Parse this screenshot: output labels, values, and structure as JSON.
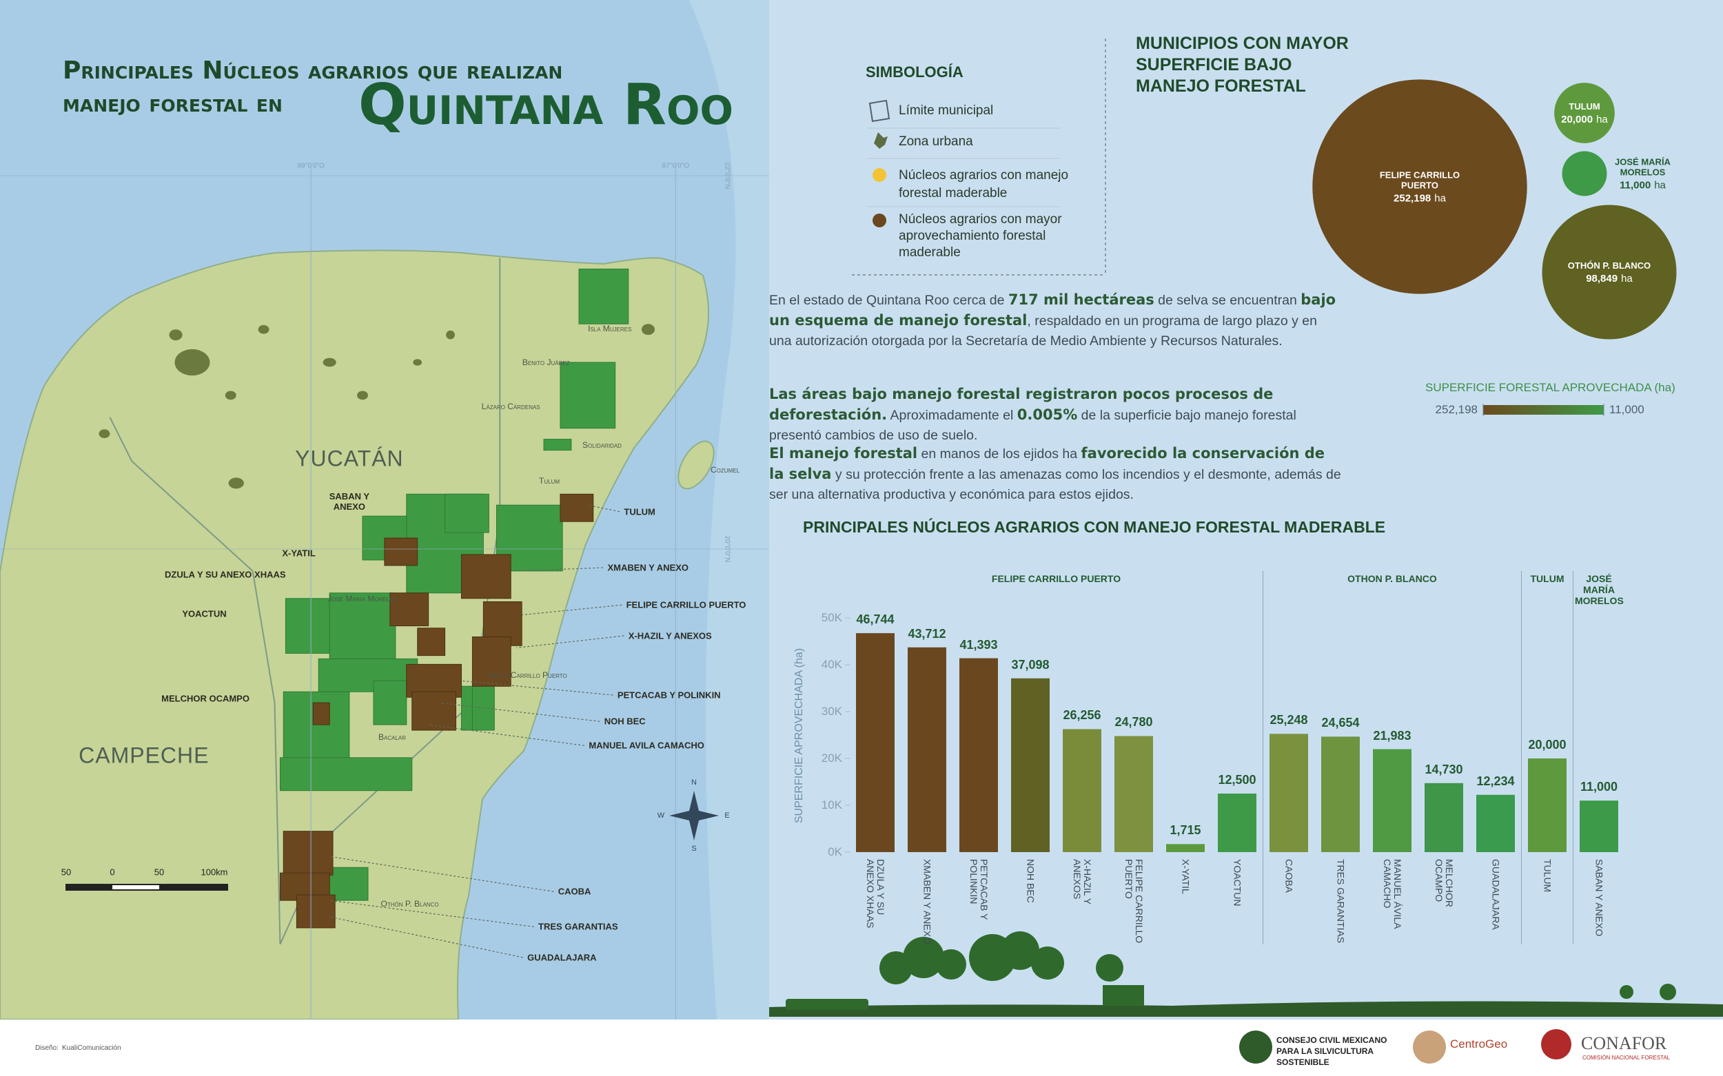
{
  "header": {
    "title_line1": "Principales Núcleos agrarios que realizan",
    "title_line2": "manejo forestal en",
    "title_emphasis": "Quintana Roo"
  },
  "legend": {
    "title": "SIMBOLOGÍA",
    "items": [
      "Límite municipal",
      "Zona urbana",
      "Núcleos agrarios con manejo forestal maderable",
      "Núcleos agrarios con mayor aprovechamiento forestal maderable"
    ]
  },
  "intro": {
    "paragraphs": [
      [
        {
          "text": "En el estado de Quintana Roo cerca de ",
          "bold": false
        },
        {
          "text": "717 mil hectáreas",
          "bold": true
        },
        {
          "text": " de selva se encuentran ",
          "bold": false
        },
        {
          "text": "bajo un esquema de manejo forestal",
          "bold": true
        },
        {
          "text": ", respaldado en un programa de largo plazo y en una autorización otorgada por la Secretaría de Medio Ambiente y Recursos Naturales.",
          "bold": false
        }
      ],
      [
        {
          "text": "Las áreas bajo manejo forestal registraron pocos procesos de deforestación.",
          "bold": true
        },
        {
          "text": " Aproximadamente el ",
          "bold": false
        },
        {
          "text": "0.005%",
          "bold": true
        },
        {
          "text": " de la superficie bajo manejo forestal presentó cambios de uso de suelo.",
          "bold": false
        }
      ],
      [
        {
          "text": "El manejo forestal",
          "bold": true
        },
        {
          "text": " en manos de los ejidos ha ",
          "bold": false
        },
        {
          "text": "favorecido la conservación de la selva",
          "bold": true
        },
        {
          "text": " y su protección frente a las amenazas como los incendios y el desmonte, además de ser una alternativa productiva y económica para estos ejidos.",
          "bold": false
        }
      ]
    ]
  },
  "map": {
    "region_labels": [
      "YUCATÁN",
      "CAMPECHE"
    ],
    "ejido_labels": [
      "SABAN Y ANEXO",
      "X-YATIL",
      "DZULA Y SU ANEXO XHAAS",
      "YOACTUN",
      "MELCHOR OCAMPO",
      "TULUM",
      "XMABEN Y ANEXO",
      "FELIPE CARRILLO PUERTO",
      "X-HAZIL Y ANEXOS",
      "PETCACAB Y POLINKIN",
      "NOH BEC",
      "MANUEL AVILA CAMACHO",
      "CAOBA",
      "TRES GARANTIAS",
      "GUADALAJARA"
    ],
    "municipality_labels": [
      "Isla Mujeres",
      "Benito Juárez",
      "Lázaro Cárdenas",
      "Solidaridad",
      "Tulum",
      "Cozumel",
      "José María Morelos",
      "Felipe Carrillo Puerto",
      "Bacalar",
      "Othón P. Blanco"
    ],
    "coordinates": [
      "89°0'0\"O",
      "87°0'0\"O",
      "22°0'0\"N",
      "20°0'0\"N"
    ],
    "scale": [
      "50",
      "0",
      "50",
      "100km"
    ],
    "compass": [
      "N",
      "S",
      "E",
      "W"
    ]
  },
  "chart_data": [
    {
      "type": "bubble",
      "title": "MUNICIPIOS CON MAYOR SUPERFICIE BAJO MANEJO FORESTAL",
      "categories": [
        "FELIPE CARRILLO PUERTO",
        "TULUM",
        "JOSÉ MARÍA MORELOS",
        "OTHÓN P. BLANCO"
      ],
      "values": [
        252198,
        20000,
        11000,
        98849
      ],
      "value_labels": [
        "252,198",
        "20,000",
        "11,000",
        "98,849"
      ],
      "unit": "ha",
      "colors": [
        "#6b4a1e",
        "#5e9a3d",
        "#3f9a48",
        "#5f6220"
      ],
      "colorbar": {
        "title": "SUPERFICIE FORESTAL APROVECHADA (ha)",
        "ticks": [
          {
            "value": 252198,
            "label": "252,198"
          },
          {
            "value": 11000,
            "label": "11,000"
          }
        ],
        "colors": [
          "#6b4a1e",
          "#3f9a48"
        ]
      }
    },
    {
      "type": "bar",
      "title": "PRINCIPALES NÚCLEOS AGRARIOS CON MANEJO FORESTAL MADERABLE",
      "ylabel": "SUPERFICIE APROVECHADA (ha)",
      "ylim": [
        0,
        50000
      ],
      "yticks": [
        {
          "value": 0,
          "label": "0K"
        },
        {
          "value": 10000,
          "label": "10K"
        },
        {
          "value": 20000,
          "label": "20K"
        },
        {
          "value": 30000,
          "label": "30K"
        },
        {
          "value": 40000,
          "label": "40K"
        },
        {
          "value": 50000,
          "label": "50K"
        }
      ],
      "groups": [
        {
          "name": "FELIPE CARRILLO PUERTO",
          "categories": [
            "DZULA Y SU ANEXO XHAAS",
            "XMABEN Y ANEXO",
            "PETCACAB Y POLINKIN",
            "NOH BEC",
            "X-HAZIL Y ANEXOS",
            "FELIPE CARRILLO PUERTO",
            "X-YATIL",
            "YOACTUN"
          ],
          "values": [
            46744,
            43712,
            41393,
            37098,
            26256,
            24780,
            1715,
            12500
          ],
          "value_labels": [
            "46,744",
            "43,712",
            "41,393",
            "37,098",
            "26,256",
            "24,780",
            "1,715",
            "12,500"
          ],
          "colors": [
            "#6b4720",
            "#6b4720",
            "#6b4720",
            "#5f6222",
            "#7a8c3a",
            "#7d9140",
            "#5a9a3c",
            "#3f9a48"
          ]
        },
        {
          "name": "OTHON P. BLANCO",
          "categories": [
            "CAOBA",
            "TRES GARANTIAS",
            "MANUEL ÁVILA CAMACHO",
            "MELCHOR OCAMPO",
            "GUADALAJARA"
          ],
          "values": [
            25248,
            24654,
            21983,
            14730,
            12234
          ],
          "value_labels": [
            "25,248",
            "24,654",
            "21,983",
            "14,730",
            "12,234"
          ],
          "colors": [
            "#7a913e",
            "#6f9440",
            "#4f9a42",
            "#3f9548",
            "#3a9a4e"
          ]
        },
        {
          "name": "TULUM",
          "categories": [
            "TULUM"
          ],
          "values": [
            20000
          ],
          "value_labels": [
            "20,000"
          ],
          "colors": [
            "#5e9a3d"
          ]
        },
        {
          "name": "JOSÉ MARÍA MORELOS",
          "categories": [
            "SABAN Y ANEXO"
          ],
          "values": [
            11000
          ],
          "value_labels": [
            "11,000"
          ],
          "colors": [
            "#3d9a48"
          ]
        }
      ]
    }
  ],
  "footer": {
    "design_label": "Diseño:",
    "design_studio": "KualiComunicación",
    "org1": "CONSEJO CIVIL MEXICANO PARA LA SILVICULTURA SOSTENIBLE",
    "org2": "CentroGeo",
    "org3": "CONAFOR",
    "org3_sub": "COMISIÓN NACIONAL FORESTAL"
  }
}
